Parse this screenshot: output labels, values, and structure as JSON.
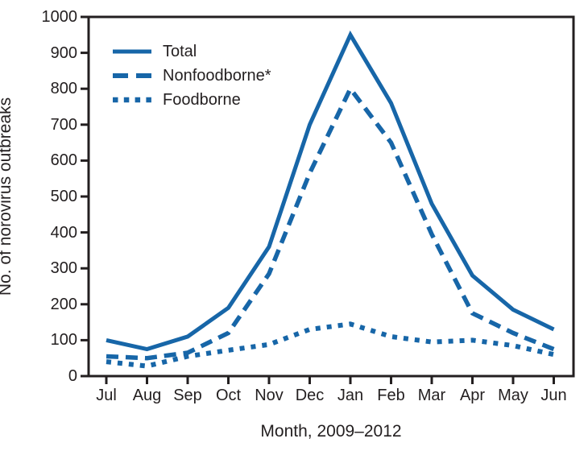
{
  "figure": {
    "background": "#ffffff",
    "axis_color": "#231f20",
    "line_color": "#1766a8"
  },
  "chart_data": {
    "type": "line",
    "title": "",
    "xlabel": "Month, 2009–2012",
    "ylabel": "No. of norovirus outbreaks",
    "categories": [
      "Jul",
      "Aug",
      "Sep",
      "Oct",
      "Nov",
      "Dec",
      "Jan",
      "Feb",
      "Mar",
      "Apr",
      "May",
      "Jun"
    ],
    "y_ticks": [
      0,
      100,
      200,
      300,
      400,
      500,
      600,
      700,
      800,
      900,
      1000
    ],
    "ylim": [
      0,
      1000
    ],
    "grid": false,
    "legend_position": "top-left-inside",
    "series": [
      {
        "name": "Total",
        "style": "solid",
        "values": [
          100,
          75,
          110,
          190,
          360,
          700,
          950,
          760,
          480,
          280,
          185,
          130
        ]
      },
      {
        "name": "Nonfoodborne*",
        "style": "dashed",
        "values": [
          55,
          50,
          65,
          120,
          285,
          565,
          800,
          650,
          395,
          175,
          120,
          75
        ]
      },
      {
        "name": "Foodborne",
        "style": "dotted",
        "values": [
          40,
          28,
          55,
          72,
          88,
          130,
          145,
          110,
          95,
          100,
          85,
          60
        ]
      }
    ]
  }
}
